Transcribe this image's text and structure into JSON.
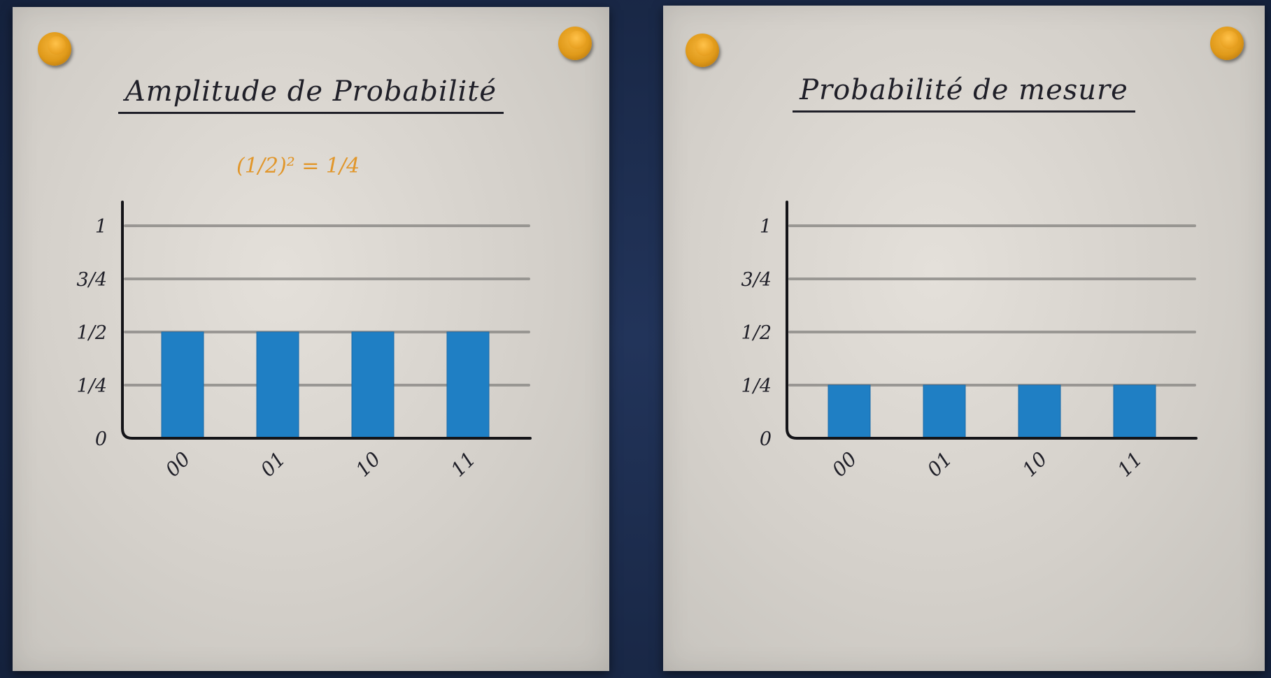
{
  "chart_data": [
    {
      "type": "bar",
      "title": "Amplitude de Probabilité",
      "annotation": "(1/2)² = 1/4",
      "categories": [
        "00",
        "01",
        "10",
        "11"
      ],
      "values": [
        0.5,
        0.5,
        0.5,
        0.5
      ],
      "yticks": [
        0,
        0.25,
        0.5,
        0.75,
        1
      ],
      "ytick_labels": [
        "0",
        "1/4",
        "1/2",
        "3/4",
        "1"
      ],
      "ylim": [
        0,
        1
      ],
      "grid": true,
      "color": "#1f7fc4"
    },
    {
      "type": "bar",
      "title": "Probabilité de mesure",
      "categories": [
        "00",
        "01",
        "10",
        "11"
      ],
      "values": [
        0.25,
        0.25,
        0.25,
        0.25
      ],
      "yticks": [
        0,
        0.25,
        0.5,
        0.75,
        1
      ],
      "ytick_labels": [
        "0",
        "1/4",
        "1/2",
        "3/4",
        "1"
      ],
      "ylim": [
        0,
        1
      ],
      "grid": true,
      "color": "#1f7fc4"
    }
  ]
}
